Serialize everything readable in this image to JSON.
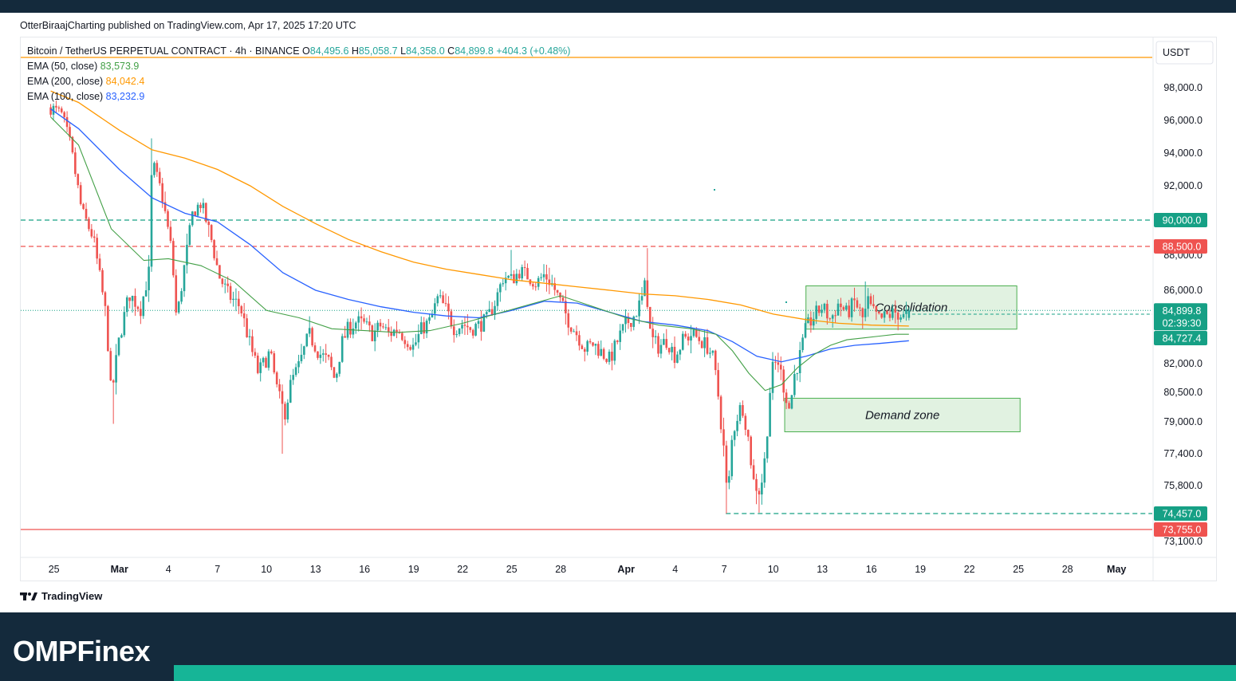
{
  "header": {
    "attribution": "OtterBiraajCharting published on TradingView.com, Apr 17, 2025 17:20 UTC"
  },
  "footer": {
    "tv_brand": "TradingView",
    "site_brand": "OMPFinex"
  },
  "colors": {
    "up": "#26a69a",
    "down": "#ef5350",
    "ema50": "#43a047",
    "ema100": "#2962ff",
    "ema200": "#ff9800",
    "zone_fill": "rgba(76,175,80,0.17)",
    "zone_stroke": "#4caf50"
  },
  "chart_data": {
    "type": "candlestick",
    "symbol": "Bitcoin / TetherUS PERPETUAL CONTRACT",
    "interval": "4h",
    "exchange": "BINANCE",
    "ohlc": {
      "open": "84,495.6",
      "high": "85,058.7",
      "low": "84,358.0",
      "close": "84,899.8",
      "change": "+404.3 (+0.48%)"
    },
    "currency": "USDT",
    "legend": [
      {
        "label": "EMA (50, close)",
        "value": "83,573.9",
        "color": "#43a047"
      },
      {
        "label": "EMA (200, close)",
        "value": "84,042.4",
        "color": "#ff9800"
      },
      {
        "label": "EMA (100, close)",
        "value": "83,232.9",
        "color": "#2962ff"
      }
    ],
    "y_ticks": [
      {
        "value": 98000,
        "label": "98,000.0"
      },
      {
        "value": 96000,
        "label": "96,000.0"
      },
      {
        "value": 94000,
        "label": "94,000.0"
      },
      {
        "value": 92000,
        "label": "92,000.0"
      },
      {
        "value": 88000,
        "label": "88,000.0"
      },
      {
        "value": 86000,
        "label": "86,000.0"
      },
      {
        "value": 82000,
        "label": "82,000.0"
      },
      {
        "value": 80500,
        "label": "80,500.0"
      },
      {
        "value": 79000,
        "label": "79,000.0"
      },
      {
        "value": 77400,
        "label": "77,400.0"
      },
      {
        "value": 75800,
        "label": "75,800.0"
      },
      {
        "value": 73100,
        "label": "73,100.0"
      }
    ],
    "x_ticks": [
      {
        "day": -4,
        "label": "25"
      },
      {
        "day": 0,
        "label": "Mar",
        "bold": true
      },
      {
        "day": 3,
        "label": "4"
      },
      {
        "day": 6,
        "label": "7"
      },
      {
        "day": 9,
        "label": "10"
      },
      {
        "day": 12,
        "label": "13"
      },
      {
        "day": 15,
        "label": "16"
      },
      {
        "day": 18,
        "label": "19"
      },
      {
        "day": 21,
        "label": "22"
      },
      {
        "day": 24,
        "label": "25"
      },
      {
        "day": 27,
        "label": "28"
      },
      {
        "day": 31,
        "label": "Apr",
        "bold": true
      },
      {
        "day": 34,
        "label": "4"
      },
      {
        "day": 37,
        "label": "7"
      },
      {
        "day": 40,
        "label": "10"
      },
      {
        "day": 43,
        "label": "13"
      },
      {
        "day": 46,
        "label": "16"
      },
      {
        "day": 49,
        "label": "19"
      },
      {
        "day": 52,
        "label": "22"
      },
      {
        "day": 55,
        "label": "25"
      },
      {
        "day": 58,
        "label": "28"
      },
      {
        "day": 61,
        "label": "May",
        "bold": true
      }
    ],
    "levels": [
      {
        "price": 90000,
        "label": "90,000.0",
        "color": "#16a085",
        "dash": true
      },
      {
        "price": 88500,
        "label": "88,500.0",
        "color": "#ef5350",
        "dash": true
      },
      {
        "price": 74457,
        "label": "74,457.0",
        "color": "#16a085",
        "dash": true,
        "from_day": 37.1
      },
      {
        "price": 73755,
        "label": "73,755.0",
        "color": "#ef5350",
        "dash": false
      }
    ],
    "price_badges": [
      {
        "price": 84899.8,
        "label": "84,899.8",
        "timer": "02:39:30",
        "color": "#16a085"
      },
      {
        "price": 84727.4,
        "label": "84,727.4",
        "color": "#16a085"
      }
    ],
    "zones": [
      {
        "label": "Consolidation",
        "from_day": 42.0,
        "to_day": 54.9,
        "top": 86250,
        "bottom": 83880
      },
      {
        "label": "Demand zone",
        "from_day": 40.7,
        "to_day": 55.1,
        "top": 80200,
        "bottom": 78500
      }
    ],
    "anchors": [
      [
        -4.2,
        96800
      ],
      [
        -3.5,
        96300
      ],
      [
        -3.0,
        94500
      ],
      [
        -2.3,
        90500
      ],
      [
        -1.6,
        89000
      ],
      [
        -0.8,
        84500
      ],
      [
        -0.5,
        80200
      ],
      [
        0.0,
        83400
      ],
      [
        0.6,
        85800
      ],
      [
        1.3,
        85000
      ],
      [
        1.8,
        87000
      ],
      [
        2.0,
        93500
      ],
      [
        2.6,
        91500
      ],
      [
        3.2,
        88200
      ],
      [
        3.5,
        84300
      ],
      [
        4.0,
        87500
      ],
      [
        4.5,
        90500
      ],
      [
        5.0,
        91000
      ],
      [
        5.6,
        89000
      ],
      [
        6.1,
        86800
      ],
      [
        6.7,
        85700
      ],
      [
        7.4,
        85100
      ],
      [
        8.0,
        83000
      ],
      [
        8.5,
        81500
      ],
      [
        9.2,
        82600
      ],
      [
        9.7,
        80400
      ],
      [
        10.1,
        79400
      ],
      [
        10.5,
        81000
      ],
      [
        11.0,
        81900
      ],
      [
        11.6,
        83600
      ],
      [
        12.2,
        82600
      ],
      [
        12.8,
        82100
      ],
      [
        13.2,
        81100
      ],
      [
        13.6,
        83100
      ],
      [
        14.0,
        83900
      ],
      [
        14.5,
        84300
      ],
      [
        15.0,
        84100
      ],
      [
        15.5,
        83600
      ],
      [
        16.0,
        84100
      ],
      [
        16.5,
        83600
      ],
      [
        17.0,
        83900
      ],
      [
        17.5,
        83400
      ],
      [
        18.0,
        82900
      ],
      [
        18.5,
        83900
      ],
      [
        19.0,
        84300
      ],
      [
        19.5,
        85600
      ],
      [
        20.0,
        84900
      ],
      [
        20.5,
        83900
      ],
      [
        21.0,
        84200
      ],
      [
        21.5,
        83900
      ],
      [
        22.0,
        84100
      ],
      [
        22.5,
        84400
      ],
      [
        23.0,
        85400
      ],
      [
        23.5,
        86800
      ],
      [
        24.0,
        86600
      ],
      [
        24.5,
        87100
      ],
      [
        25.0,
        86800
      ],
      [
        25.5,
        86400
      ],
      [
        26.0,
        86900
      ],
      [
        26.5,
        86300
      ],
      [
        27.0,
        85300
      ],
      [
        27.5,
        84300
      ],
      [
        28.0,
        83600
      ],
      [
        28.5,
        82800
      ],
      [
        29.0,
        83100
      ],
      [
        29.5,
        82600
      ],
      [
        30.0,
        82200
      ],
      [
        30.5,
        83300
      ],
      [
        31.0,
        84200
      ],
      [
        31.5,
        84600
      ],
      [
        32.0,
        85600
      ],
      [
        32.2,
        86500
      ],
      [
        32.5,
        83400
      ],
      [
        33.0,
        82900
      ],
      [
        33.5,
        83300
      ],
      [
        34.0,
        82400
      ],
      [
        34.5,
        83300
      ],
      [
        35.0,
        83600
      ],
      [
        35.5,
        83300
      ],
      [
        36.0,
        82900
      ],
      [
        36.3,
        82300
      ],
      [
        36.6,
        80600
      ],
      [
        37.0,
        77400
      ],
      [
        37.2,
        74900
      ],
      [
        37.5,
        78400
      ],
      [
        37.8,
        79300
      ],
      [
        38.1,
        79900
      ],
      [
        38.4,
        78600
      ],
      [
        38.8,
        76000
      ],
      [
        39.2,
        75500
      ],
      [
        39.5,
        77200
      ],
      [
        39.8,
        80600
      ],
      [
        40.0,
        81900
      ],
      [
        40.3,
        82100
      ],
      [
        40.7,
        80600
      ],
      [
        41.0,
        79600
      ],
      [
        41.3,
        81400
      ],
      [
        41.6,
        82300
      ],
      [
        42.0,
        83900
      ],
      [
        42.5,
        84600
      ],
      [
        43.0,
        85100
      ],
      [
        43.5,
        84400
      ],
      [
        44.0,
        85300
      ],
      [
        44.5,
        84700
      ],
      [
        45.0,
        85400
      ],
      [
        45.5,
        84400
      ],
      [
        45.8,
        85400
      ],
      [
        46.0,
        84900
      ],
      [
        46.5,
        84400
      ],
      [
        47.0,
        84600
      ],
      [
        47.5,
        84800
      ],
      [
        48.0,
        84500
      ],
      [
        48.3,
        84900
      ]
    ],
    "ema50_points": [
      [
        -4.2,
        96200
      ],
      [
        -2.5,
        94500
      ],
      [
        -0.5,
        89500
      ],
      [
        1.5,
        87700
      ],
      [
        3.0,
        87800
      ],
      [
        5.0,
        87400
      ],
      [
        7.0,
        86500
      ],
      [
        9.0,
        84900
      ],
      [
        11.0,
        84500
      ],
      [
        13.0,
        83900
      ],
      [
        15.0,
        83800
      ],
      [
        17.0,
        83700
      ],
      [
        19.0,
        83800
      ],
      [
        21.0,
        84200
      ],
      [
        23.0,
        84700
      ],
      [
        25.0,
        85200
      ],
      [
        27.0,
        85700
      ],
      [
        29.0,
        85100
      ],
      [
        31.0,
        84500
      ],
      [
        33.0,
        84100
      ],
      [
        35.0,
        83900
      ],
      [
        36.5,
        83600
      ],
      [
        37.5,
        82700
      ],
      [
        38.5,
        81500
      ],
      [
        39.5,
        80600
      ],
      [
        40.5,
        80900
      ],
      [
        41.5,
        81800
      ],
      [
        42.5,
        82500
      ],
      [
        43.5,
        83000
      ],
      [
        44.5,
        83300
      ],
      [
        45.5,
        83400
      ],
      [
        46.5,
        83500
      ],
      [
        47.5,
        83600
      ],
      [
        48.3,
        83600
      ]
    ],
    "ema100_points": [
      [
        -4.2,
        96700
      ],
      [
        -2.5,
        95500
      ],
      [
        0.0,
        93000
      ],
      [
        2.0,
        91300
      ],
      [
        4.0,
        90400
      ],
      [
        6.0,
        89900
      ],
      [
        8.0,
        88600
      ],
      [
        10.0,
        87000
      ],
      [
        12.0,
        86000
      ],
      [
        14.0,
        85500
      ],
      [
        16.0,
        85100
      ],
      [
        18.0,
        84800
      ],
      [
        20.0,
        84600
      ],
      [
        22.0,
        84500
      ],
      [
        24.0,
        84900
      ],
      [
        26.0,
        85400
      ],
      [
        28.0,
        85300
      ],
      [
        30.0,
        84800
      ],
      [
        32.0,
        84300
      ],
      [
        34.0,
        84100
      ],
      [
        36.0,
        83800
      ],
      [
        37.5,
        83200
      ],
      [
        39.0,
        82400
      ],
      [
        40.5,
        82100
      ],
      [
        42.0,
        82400
      ],
      [
        43.5,
        82800
      ],
      [
        45.0,
        83000
      ],
      [
        46.5,
        83100
      ],
      [
        48.3,
        83250
      ]
    ],
    "ema200_points": [
      [
        -4.2,
        97800
      ],
      [
        -2.5,
        97100
      ],
      [
        0.0,
        95400
      ],
      [
        2.0,
        94200
      ],
      [
        4.0,
        93700
      ],
      [
        6.0,
        93000
      ],
      [
        8.0,
        92000
      ],
      [
        10.0,
        90800
      ],
      [
        12.0,
        89800
      ],
      [
        14.0,
        88900
      ],
      [
        16.0,
        88200
      ],
      [
        18.0,
        87600
      ],
      [
        20.0,
        87200
      ],
      [
        22.0,
        86900
      ],
      [
        24.0,
        86600
      ],
      [
        26.0,
        86400
      ],
      [
        28.0,
        86200
      ],
      [
        30.0,
        86000
      ],
      [
        32.0,
        85800
      ],
      [
        34.0,
        85700
      ],
      [
        36.0,
        85500
      ],
      [
        38.0,
        85200
      ],
      [
        40.0,
        84700
      ],
      [
        42.0,
        84400
      ],
      [
        44.0,
        84200
      ],
      [
        46.0,
        84100
      ],
      [
        48.3,
        84050
      ]
    ]
  }
}
